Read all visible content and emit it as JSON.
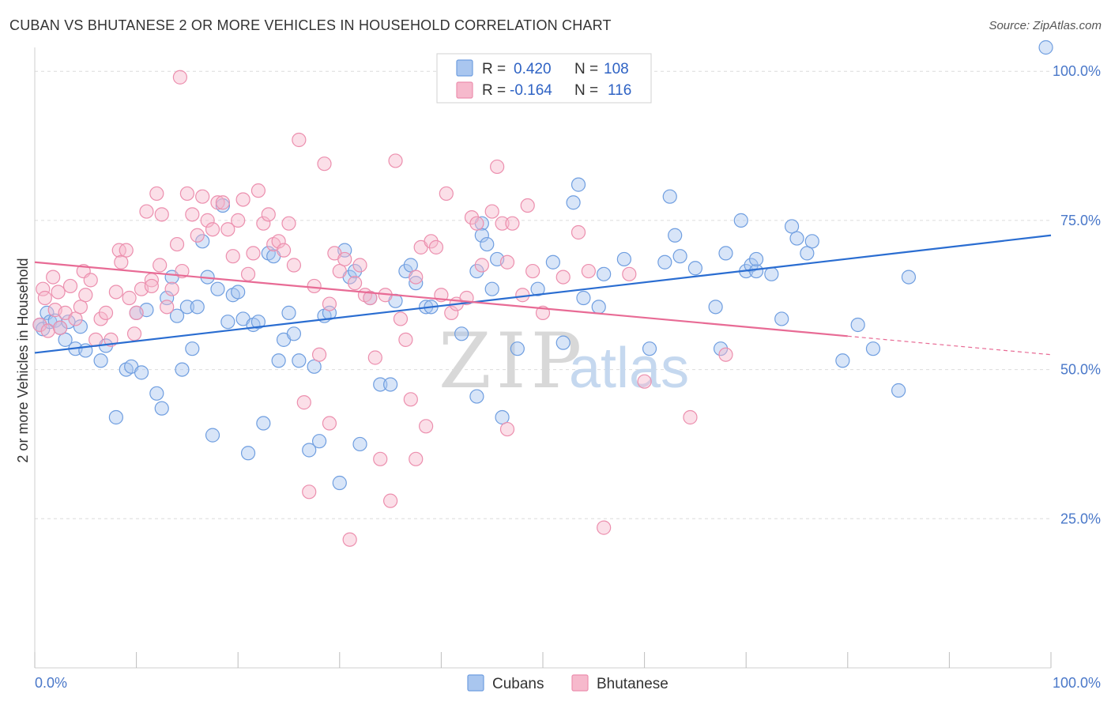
{
  "title": "CUBAN VS BHUTANESE 2 OR MORE VEHICLES IN HOUSEHOLD CORRELATION CHART",
  "source": "Source: ZipAtlas.com",
  "watermark": {
    "zip": "ZIP",
    "atlas": "atlas"
  },
  "colors": {
    "blue_fill": "#a9c6ef",
    "blue_stroke": "#6f9ee0",
    "blue_line": "#2a6dd1",
    "pink_fill": "#f6b9cc",
    "pink_stroke": "#ec8fae",
    "pink_line": "#e86b95",
    "tick_text": "#4a78c9"
  },
  "legend": {
    "rows": [
      {
        "r_label": "R =",
        "r_value": "0.420",
        "n_label": "N =",
        "n_value": "108",
        "series": "cubans"
      },
      {
        "r_label": "R =",
        "r_value": "-0.164",
        "n_label": "N =",
        "n_value": "116",
        "series": "bhutanese"
      }
    ]
  },
  "bottom_legend": [
    {
      "label": "Cubans",
      "series": "cubans"
    },
    {
      "label": "Bhutanese",
      "series": "bhutanese"
    }
  ],
  "chart_data": {
    "type": "scatter",
    "title": "CUBAN VS BHUTANESE 2 OR MORE VEHICLES IN HOUSEHOLD CORRELATION CHART",
    "xlabel": "",
    "ylabel": "2 or more Vehicles in Household",
    "xlim": [
      0,
      100
    ],
    "ylim": [
      0,
      104
    ],
    "x_tick_labels": [
      {
        "value": 0,
        "label": "0.0%"
      },
      {
        "value": 100,
        "label": "100.0%"
      }
    ],
    "y_tick_labels": [
      {
        "value": 25,
        "label": "25.0%"
      },
      {
        "value": 50,
        "label": "50.0%"
      },
      {
        "value": 75,
        "label": "75.0%"
      },
      {
        "value": 100,
        "label": "100.0%"
      }
    ],
    "series": [
      {
        "name": "Cubans",
        "key": "cubans",
        "r": 0.42,
        "n": 108,
        "trend": {
          "x0": 0,
          "y0": 52.8,
          "x1": 100,
          "y1": 72.5,
          "dash_from": null
        },
        "points": [
          [
            0.5,
            57.5
          ],
          [
            0.8,
            56.8
          ],
          [
            1.2,
            59.5
          ],
          [
            1.5,
            58.0
          ],
          [
            2.0,
            58.2
          ],
          [
            2.5,
            57.0
          ],
          [
            3.0,
            55.0
          ],
          [
            3.3,
            58.0
          ],
          [
            4.0,
            53.5
          ],
          [
            4.5,
            57.2
          ],
          [
            5.0,
            53.2
          ],
          [
            6.5,
            51.5
          ],
          [
            7.0,
            54.0
          ],
          [
            8.0,
            42.0
          ],
          [
            9.0,
            50.0
          ],
          [
            9.5,
            50.5
          ],
          [
            10.0,
            59.5
          ],
          [
            10.5,
            49.5
          ],
          [
            11.0,
            60.0
          ],
          [
            12.0,
            46.0
          ],
          [
            12.5,
            43.5
          ],
          [
            13.0,
            62.0
          ],
          [
            13.5,
            65.5
          ],
          [
            14.0,
            59.0
          ],
          [
            14.5,
            50.0
          ],
          [
            15.0,
            60.5
          ],
          [
            15.5,
            53.5
          ],
          [
            16.0,
            60.5
          ],
          [
            16.5,
            71.5
          ],
          [
            17.0,
            65.5
          ],
          [
            17.5,
            39.0
          ],
          [
            18.0,
            63.5
          ],
          [
            18.5,
            77.5
          ],
          [
            19.0,
            58.0
          ],
          [
            19.5,
            62.5
          ],
          [
            20.0,
            63.0
          ],
          [
            20.5,
            58.5
          ],
          [
            21.0,
            36.0
          ],
          [
            21.5,
            57.5
          ],
          [
            22.0,
            58.0
          ],
          [
            22.5,
            41.0
          ],
          [
            23.0,
            69.5
          ],
          [
            23.5,
            69.0
          ],
          [
            24.0,
            51.5
          ],
          [
            24.5,
            55.0
          ],
          [
            25.0,
            59.5
          ],
          [
            25.5,
            56.0
          ],
          [
            26.0,
            51.5
          ],
          [
            27.0,
            36.5
          ],
          [
            27.5,
            50.5
          ],
          [
            28.0,
            38.0
          ],
          [
            28.5,
            59.0
          ],
          [
            29.0,
            59.5
          ],
          [
            30.0,
            31.0
          ],
          [
            30.5,
            70.0
          ],
          [
            31.0,
            65.5
          ],
          [
            31.5,
            66.5
          ],
          [
            32.0,
            37.5
          ],
          [
            33.0,
            62.0
          ],
          [
            34.0,
            47.5
          ],
          [
            35.0,
            47.5
          ],
          [
            35.5,
            61.5
          ],
          [
            36.5,
            66.5
          ],
          [
            37.0,
            67.5
          ],
          [
            37.5,
            64.5
          ],
          [
            38.5,
            60.5
          ],
          [
            39.0,
            60.5
          ],
          [
            42.0,
            56.0
          ],
          [
            43.5,
            45.5
          ],
          [
            43.5,
            66.5
          ],
          [
            44.0,
            74.5
          ],
          [
            44.0,
            72.5
          ],
          [
            44.5,
            71.0
          ],
          [
            45.0,
            63.5
          ],
          [
            45.5,
            68.5
          ],
          [
            46.0,
            42.0
          ],
          [
            47.5,
            53.5
          ],
          [
            49.5,
            63.5
          ],
          [
            51.0,
            68.0
          ],
          [
            52.0,
            54.5
          ],
          [
            53.0,
            78.0
          ],
          [
            53.5,
            81.0
          ],
          [
            54.0,
            62.0
          ],
          [
            55.5,
            60.5
          ],
          [
            56.0,
            66.0
          ],
          [
            58.0,
            68.5
          ],
          [
            60.5,
            53.5
          ],
          [
            62.0,
            68.0
          ],
          [
            62.5,
            79.0
          ],
          [
            63.0,
            72.5
          ],
          [
            63.5,
            69.0
          ],
          [
            65.0,
            67.0
          ],
          [
            67.0,
            60.5
          ],
          [
            67.5,
            53.5
          ],
          [
            68.0,
            69.5
          ],
          [
            69.5,
            75.0
          ],
          [
            70.0,
            66.5
          ],
          [
            70.5,
            67.5
          ],
          [
            71.0,
            66.5
          ],
          [
            71.0,
            68.5
          ],
          [
            72.5,
            66.0
          ],
          [
            73.5,
            58.5
          ],
          [
            74.5,
            74.0
          ],
          [
            75.0,
            72.0
          ],
          [
            76.0,
            69.5
          ],
          [
            76.5,
            71.5
          ],
          [
            81.0,
            57.5
          ],
          [
            82.5,
            53.5
          ],
          [
            85.0,
            46.5
          ],
          [
            86.0,
            65.5
          ],
          [
            99.5,
            104.0
          ],
          [
            79.5,
            51.5
          ]
        ]
      },
      {
        "name": "Bhutanese",
        "key": "bhutanese",
        "r": -0.164,
        "n": 116,
        "trend": {
          "x0": 0,
          "y0": 68.0,
          "x1": 100,
          "y1": 52.5,
          "dash_from": 80
        },
        "points": [
          [
            0.5,
            57.5
          ],
          [
            0.8,
            63.5
          ],
          [
            1.0,
            62.0
          ],
          [
            1.3,
            56.5
          ],
          [
            1.8,
            65.5
          ],
          [
            2.0,
            60.0
          ],
          [
            2.3,
            63.0
          ],
          [
            2.5,
            57.0
          ],
          [
            3.0,
            59.5
          ],
          [
            3.5,
            64.0
          ],
          [
            4.0,
            58.5
          ],
          [
            4.5,
            60.5
          ],
          [
            4.8,
            66.5
          ],
          [
            5.0,
            62.5
          ],
          [
            5.5,
            65.0
          ],
          [
            6.0,
            55.0
          ],
          [
            6.5,
            58.5
          ],
          [
            7.0,
            59.5
          ],
          [
            7.5,
            55.0
          ],
          [
            8.0,
            63.0
          ],
          [
            8.3,
            70.0
          ],
          [
            8.5,
            68.0
          ],
          [
            9.0,
            70.0
          ],
          [
            9.3,
            62.0
          ],
          [
            9.8,
            56.0
          ],
          [
            10.0,
            59.5
          ],
          [
            10.5,
            63.5
          ],
          [
            11.0,
            76.5
          ],
          [
            11.5,
            65.0
          ],
          [
            12.0,
            79.5
          ],
          [
            12.3,
            67.5
          ],
          [
            12.5,
            76.0
          ],
          [
            13.0,
            60.5
          ],
          [
            13.5,
            63.5
          ],
          [
            14.0,
            71.0
          ],
          [
            14.5,
            66.5
          ],
          [
            15.0,
            79.5
          ],
          [
            15.5,
            76.0
          ],
          [
            16.0,
            72.5
          ],
          [
            16.5,
            79.0
          ],
          [
            17.0,
            75.0
          ],
          [
            17.5,
            73.5
          ],
          [
            18.0,
            78.0
          ],
          [
            18.5,
            78.0
          ],
          [
            19.0,
            73.5
          ],
          [
            19.5,
            69.0
          ],
          [
            20.0,
            75.0
          ],
          [
            20.5,
            78.5
          ],
          [
            21.0,
            66.0
          ],
          [
            21.5,
            69.5
          ],
          [
            22.0,
            80.0
          ],
          [
            22.5,
            74.5
          ],
          [
            23.0,
            76.0
          ],
          [
            23.5,
            71.0
          ],
          [
            24.0,
            71.5
          ],
          [
            24.5,
            70.0
          ],
          [
            25.0,
            74.5
          ],
          [
            25.5,
            67.5
          ],
          [
            26.0,
            88.5
          ],
          [
            26.5,
            44.5
          ],
          [
            27.0,
            29.5
          ],
          [
            27.5,
            64.0
          ],
          [
            28.0,
            52.5
          ],
          [
            28.5,
            84.5
          ],
          [
            29.0,
            41.0
          ],
          [
            29.5,
            69.5
          ],
          [
            30.0,
            66.5
          ],
          [
            30.5,
            68.5
          ],
          [
            31.0,
            21.5
          ],
          [
            31.5,
            64.5
          ],
          [
            32.0,
            67.5
          ],
          [
            32.5,
            62.5
          ],
          [
            33.0,
            62.0
          ],
          [
            33.5,
            52.0
          ],
          [
            34.0,
            35.0
          ],
          [
            34.5,
            62.5
          ],
          [
            35.0,
            28.0
          ],
          [
            35.5,
            85.0
          ],
          [
            36.0,
            58.5
          ],
          [
            36.5,
            55.0
          ],
          [
            37.0,
            45.0
          ],
          [
            37.5,
            65.5
          ],
          [
            37.5,
            35.0
          ],
          [
            38.0,
            70.5
          ],
          [
            38.5,
            40.5
          ],
          [
            39.0,
            71.5
          ],
          [
            39.5,
            70.5
          ],
          [
            40.0,
            62.5
          ],
          [
            40.5,
            79.5
          ],
          [
            41.0,
            59.5
          ],
          [
            41.5,
            61.0
          ],
          [
            42.5,
            62.0
          ],
          [
            43.0,
            75.5
          ],
          [
            43.5,
            74.5
          ],
          [
            44.0,
            67.5
          ],
          [
            45.0,
            76.5
          ],
          [
            45.5,
            84.0
          ],
          [
            46.0,
            74.5
          ],
          [
            46.5,
            40.0
          ],
          [
            46.5,
            68.0
          ],
          [
            47.0,
            74.5
          ],
          [
            48.0,
            62.5
          ],
          [
            48.5,
            77.5
          ],
          [
            49.0,
            66.5
          ],
          [
            50.0,
            59.5
          ],
          [
            52.0,
            65.5
          ],
          [
            53.5,
            73.0
          ],
          [
            54.5,
            66.5
          ],
          [
            56.0,
            23.5
          ],
          [
            58.5,
            66.0
          ],
          [
            60.0,
            48.0
          ],
          [
            64.5,
            42.0
          ],
          [
            68.0,
            52.5
          ],
          [
            14.3,
            99.0
          ],
          [
            11.5,
            64.0
          ],
          [
            29.0,
            61.0
          ]
        ]
      }
    ]
  }
}
